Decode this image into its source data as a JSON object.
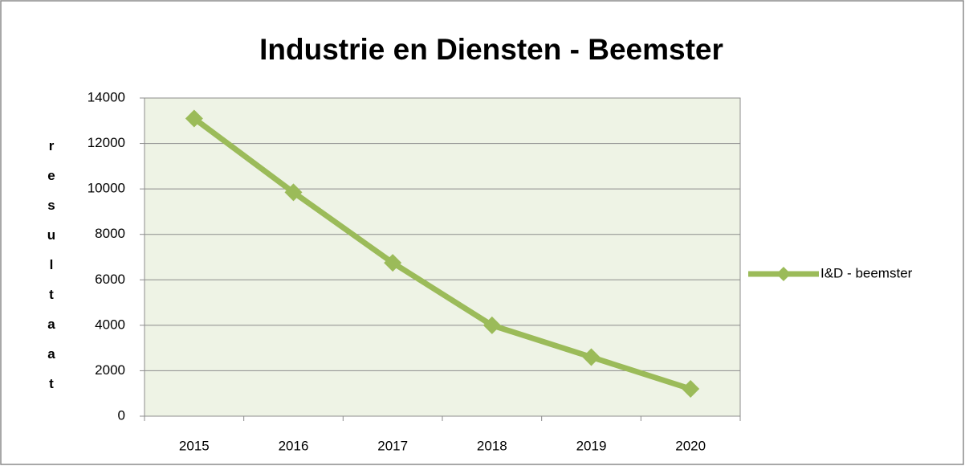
{
  "chart_data": {
    "type": "line",
    "title": "Industrie en Diensten - Beemster",
    "y_label": "resultaat",
    "categories": [
      "2015",
      "2016",
      "2017",
      "2018",
      "2019",
      "2020"
    ],
    "series": [
      {
        "name": "I&D - beemster",
        "color": "#9bbb59",
        "values": [
          13100,
          9850,
          6750,
          4000,
          2600,
          1200
        ]
      }
    ],
    "ylim": [
      0,
      14000
    ],
    "yticks": [
      0,
      2000,
      4000,
      6000,
      8000,
      10000,
      12000,
      14000
    ],
    "grid": true,
    "legend": "right",
    "plot_background": "#eef3e5"
  }
}
